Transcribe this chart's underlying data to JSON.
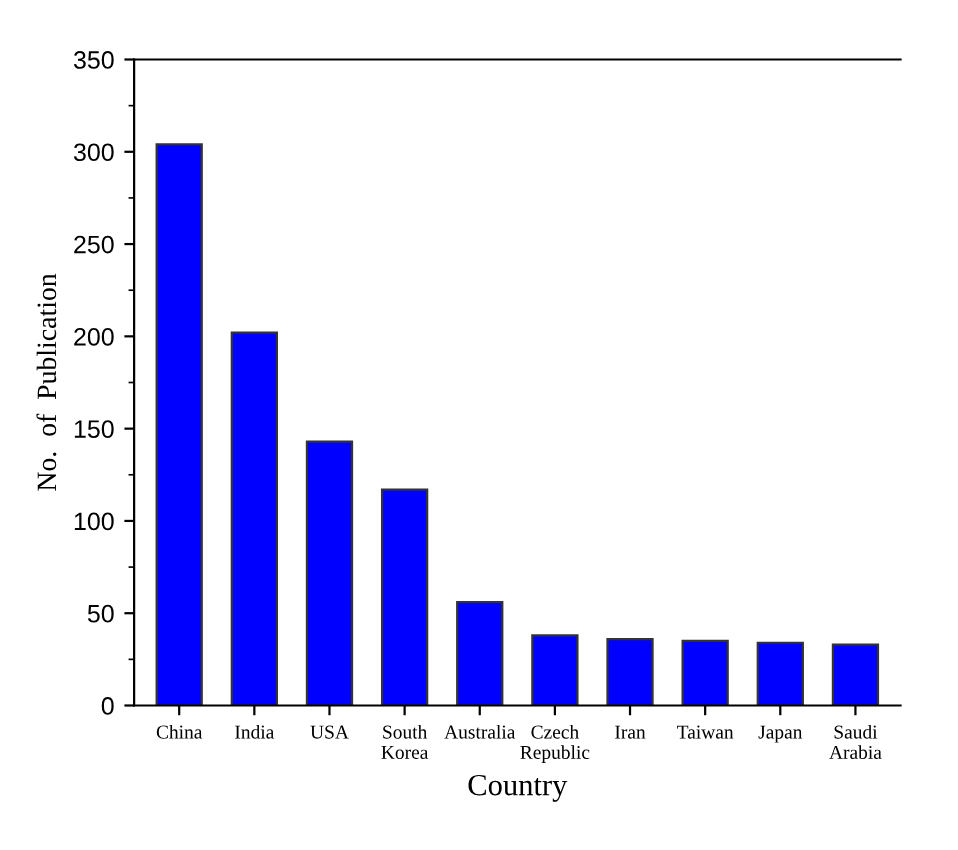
{
  "chart_data": {
    "type": "bar",
    "xlabel": "Country",
    "ylabel": "No.  of  Publication",
    "categories": [
      "China",
      "India",
      "USA",
      "South\nKorea",
      "Australia",
      "Czech\nRepublic",
      "Iran",
      "Taiwan",
      "Japan",
      "Saudi\nArabia"
    ],
    "values": [
      304,
      202,
      143,
      117,
      56,
      38,
      36,
      35,
      34,
      33
    ],
    "color": "#0000ff",
    "ylim": [
      0,
      350
    ],
    "yticks": [
      0,
      50,
      100,
      150,
      200,
      250,
      300,
      350
    ],
    "grid": false
  }
}
